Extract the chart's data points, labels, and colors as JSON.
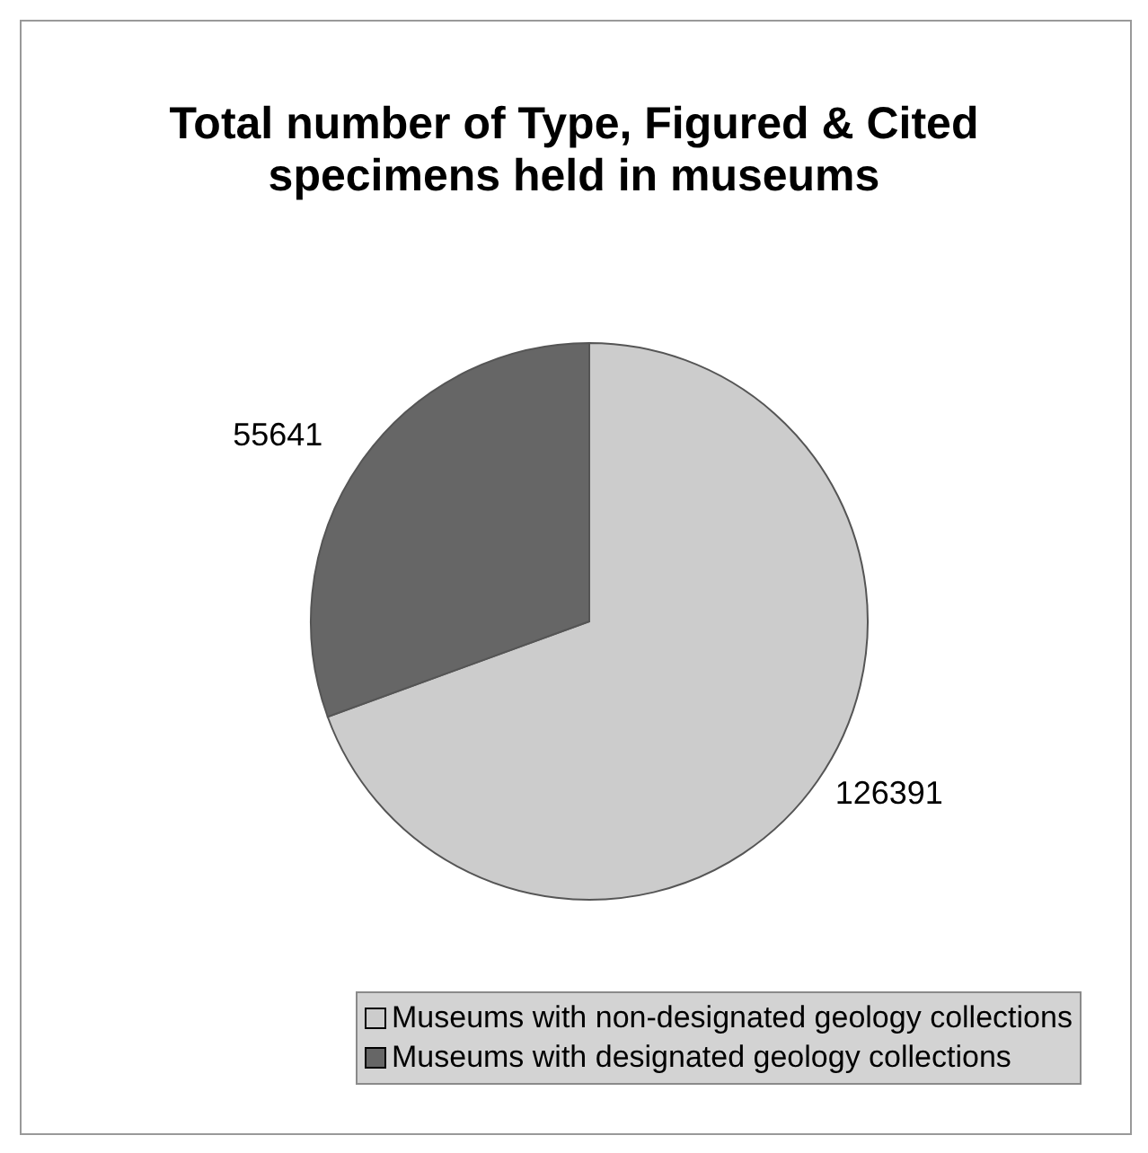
{
  "chart_data": {
    "type": "pie",
    "title": "Total number of Type, Figured & Cited specimens held in museums",
    "categories": [
      "Museums with non-designated geology collections",
      "Museums with designated geology collections"
    ],
    "values": [
      126391,
      55641
    ],
    "colors": [
      "#cccccc",
      "#666666"
    ],
    "data_labels": true,
    "legend": "bottom"
  }
}
